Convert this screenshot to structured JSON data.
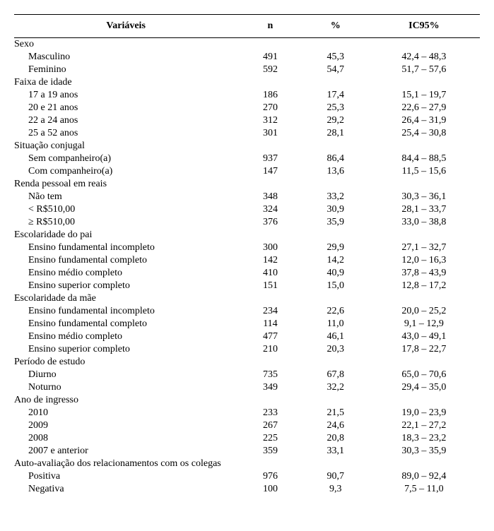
{
  "header": {
    "col1": "Variáveis",
    "col2": "n",
    "col3": "%",
    "col4": "IC95%"
  },
  "rows": [
    {
      "label": "Sexo",
      "n": "",
      "pct": "",
      "ic": "",
      "indent": false
    },
    {
      "label": "Masculino",
      "n": "491",
      "pct": "45,3",
      "ic": "42,4 – 48,3",
      "indent": true
    },
    {
      "label": "Feminino",
      "n": "592",
      "pct": "54,7",
      "ic": "51,7 – 57,6",
      "indent": true
    },
    {
      "label": "Faixa de idade",
      "n": "",
      "pct": "",
      "ic": "",
      "indent": false
    },
    {
      "label": "17 a 19 anos",
      "n": "186",
      "pct": "17,4",
      "ic": "15,1 – 19,7",
      "indent": true
    },
    {
      "label": "20 e 21 anos",
      "n": "270",
      "pct": "25,3",
      "ic": "22,6 – 27,9",
      "indent": true
    },
    {
      "label": "22 a 24 anos",
      "n": "312",
      "pct": "29,2",
      "ic": "26,4 – 31,9",
      "indent": true
    },
    {
      "label": "25 a 52 anos",
      "n": "301",
      "pct": "28,1",
      "ic": "25,4 – 30,8",
      "indent": true
    },
    {
      "label": "Situação conjugal",
      "n": "",
      "pct": "",
      "ic": "",
      "indent": false
    },
    {
      "label": "Sem companheiro(a)",
      "n": "937",
      "pct": "86,4",
      "ic": "84,4 – 88,5",
      "indent": true
    },
    {
      "label": "Com companheiro(a)",
      "n": "147",
      "pct": "13,6",
      "ic": "11,5 – 15,6",
      "indent": true
    },
    {
      "label": "Renda pessoal em reais",
      "n": "",
      "pct": "",
      "ic": "",
      "indent": false
    },
    {
      "label": "Não tem",
      "n": "348",
      "pct": "33,2",
      "ic": "30,3 – 36,1",
      "indent": true
    },
    {
      "label": "< R$510,00",
      "n": "324",
      "pct": "30,9",
      "ic": "28,1 – 33,7",
      "indent": true
    },
    {
      "label": "≥ R$510,00",
      "n": "376",
      "pct": "35,9",
      "ic": "33,0 – 38,8",
      "indent": true
    },
    {
      "label": "Escolaridade do pai",
      "n": "",
      "pct": "",
      "ic": "",
      "indent": false
    },
    {
      "label": "Ensino fundamental incompleto",
      "n": "300",
      "pct": "29,9",
      "ic": "27,1 – 32,7",
      "indent": true
    },
    {
      "label": "Ensino fundamental completo",
      "n": "142",
      "pct": "14,2",
      "ic": "12,0 – 16,3",
      "indent": true
    },
    {
      "label": "Ensino médio completo",
      "n": "410",
      "pct": "40,9",
      "ic": "37,8 – 43,9",
      "indent": true
    },
    {
      "label": "Ensino superior completo",
      "n": "151",
      "pct": "15,0",
      "ic": "12,8 – 17,2",
      "indent": true
    },
    {
      "label": "Escolaridade da mãe",
      "n": "",
      "pct": "",
      "ic": "",
      "indent": false
    },
    {
      "label": "Ensino fundamental incompleto",
      "n": "234",
      "pct": "22,6",
      "ic": "20,0 – 25,2",
      "indent": true
    },
    {
      "label": "Ensino fundamental completo",
      "n": "114",
      "pct": "11,0",
      "ic": "9,1 – 12,9",
      "indent": true
    },
    {
      "label": "Ensino médio completo",
      "n": "477",
      "pct": "46,1",
      "ic": "43,0 – 49,1",
      "indent": true
    },
    {
      "label": "Ensino superior completo",
      "n": "210",
      "pct": "20,3",
      "ic": "17,8 – 22,7",
      "indent": true
    },
    {
      "label": "Período de estudo",
      "n": "",
      "pct": "",
      "ic": "",
      "indent": false
    },
    {
      "label": "Diurno",
      "n": "735",
      "pct": "67,8",
      "ic": "65,0 – 70,6",
      "indent": true
    },
    {
      "label": "Noturno",
      "n": "349",
      "pct": "32,2",
      "ic": "29,4 – 35,0",
      "indent": true
    },
    {
      "label": "Ano de ingresso",
      "n": "",
      "pct": "",
      "ic": "",
      "indent": false
    },
    {
      "label": "2010",
      "n": "233",
      "pct": "21,5",
      "ic": "19,0 – 23,9",
      "indent": true
    },
    {
      "label": "2009",
      "n": "267",
      "pct": "24,6",
      "ic": "22,1 – 27,2",
      "indent": true
    },
    {
      "label": "2008",
      "n": "225",
      "pct": "20,8",
      "ic": "18,3 – 23,2",
      "indent": true
    },
    {
      "label": "2007 e anterior",
      "n": "359",
      "pct": "33,1",
      "ic": "30,3 – 35,9",
      "indent": true
    },
    {
      "label": "Auto-avaliação dos relacionamentos com os colegas",
      "n": "",
      "pct": "",
      "ic": "",
      "indent": false
    },
    {
      "label": "Positiva",
      "n": "976",
      "pct": "90,7",
      "ic": "89,0 – 92,4",
      "indent": true
    },
    {
      "label": "Negativa",
      "n": "100",
      "pct": "9,3",
      "ic": "7,5 – 11,0",
      "indent": true
    }
  ]
}
